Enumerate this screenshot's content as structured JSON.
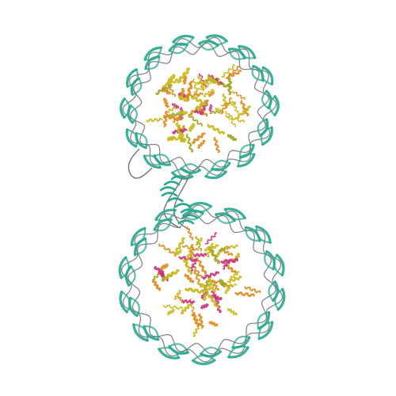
{
  "scene": {
    "background": "#ffffff",
    "colors": {
      "dna": "#2ba88f",
      "dna_backbone": "#6f7478",
      "protein_yellow": "#c8b81d",
      "protein_orange": "#d98a1c",
      "protein_magenta": "#c9307a",
      "protein_olive": "#9ea21d"
    },
    "particles": [
      {
        "name": "upper-nucleosome"
      },
      {
        "name": "lower-nucleosome"
      }
    ],
    "linker": {
      "name": "linker-dna"
    }
  }
}
